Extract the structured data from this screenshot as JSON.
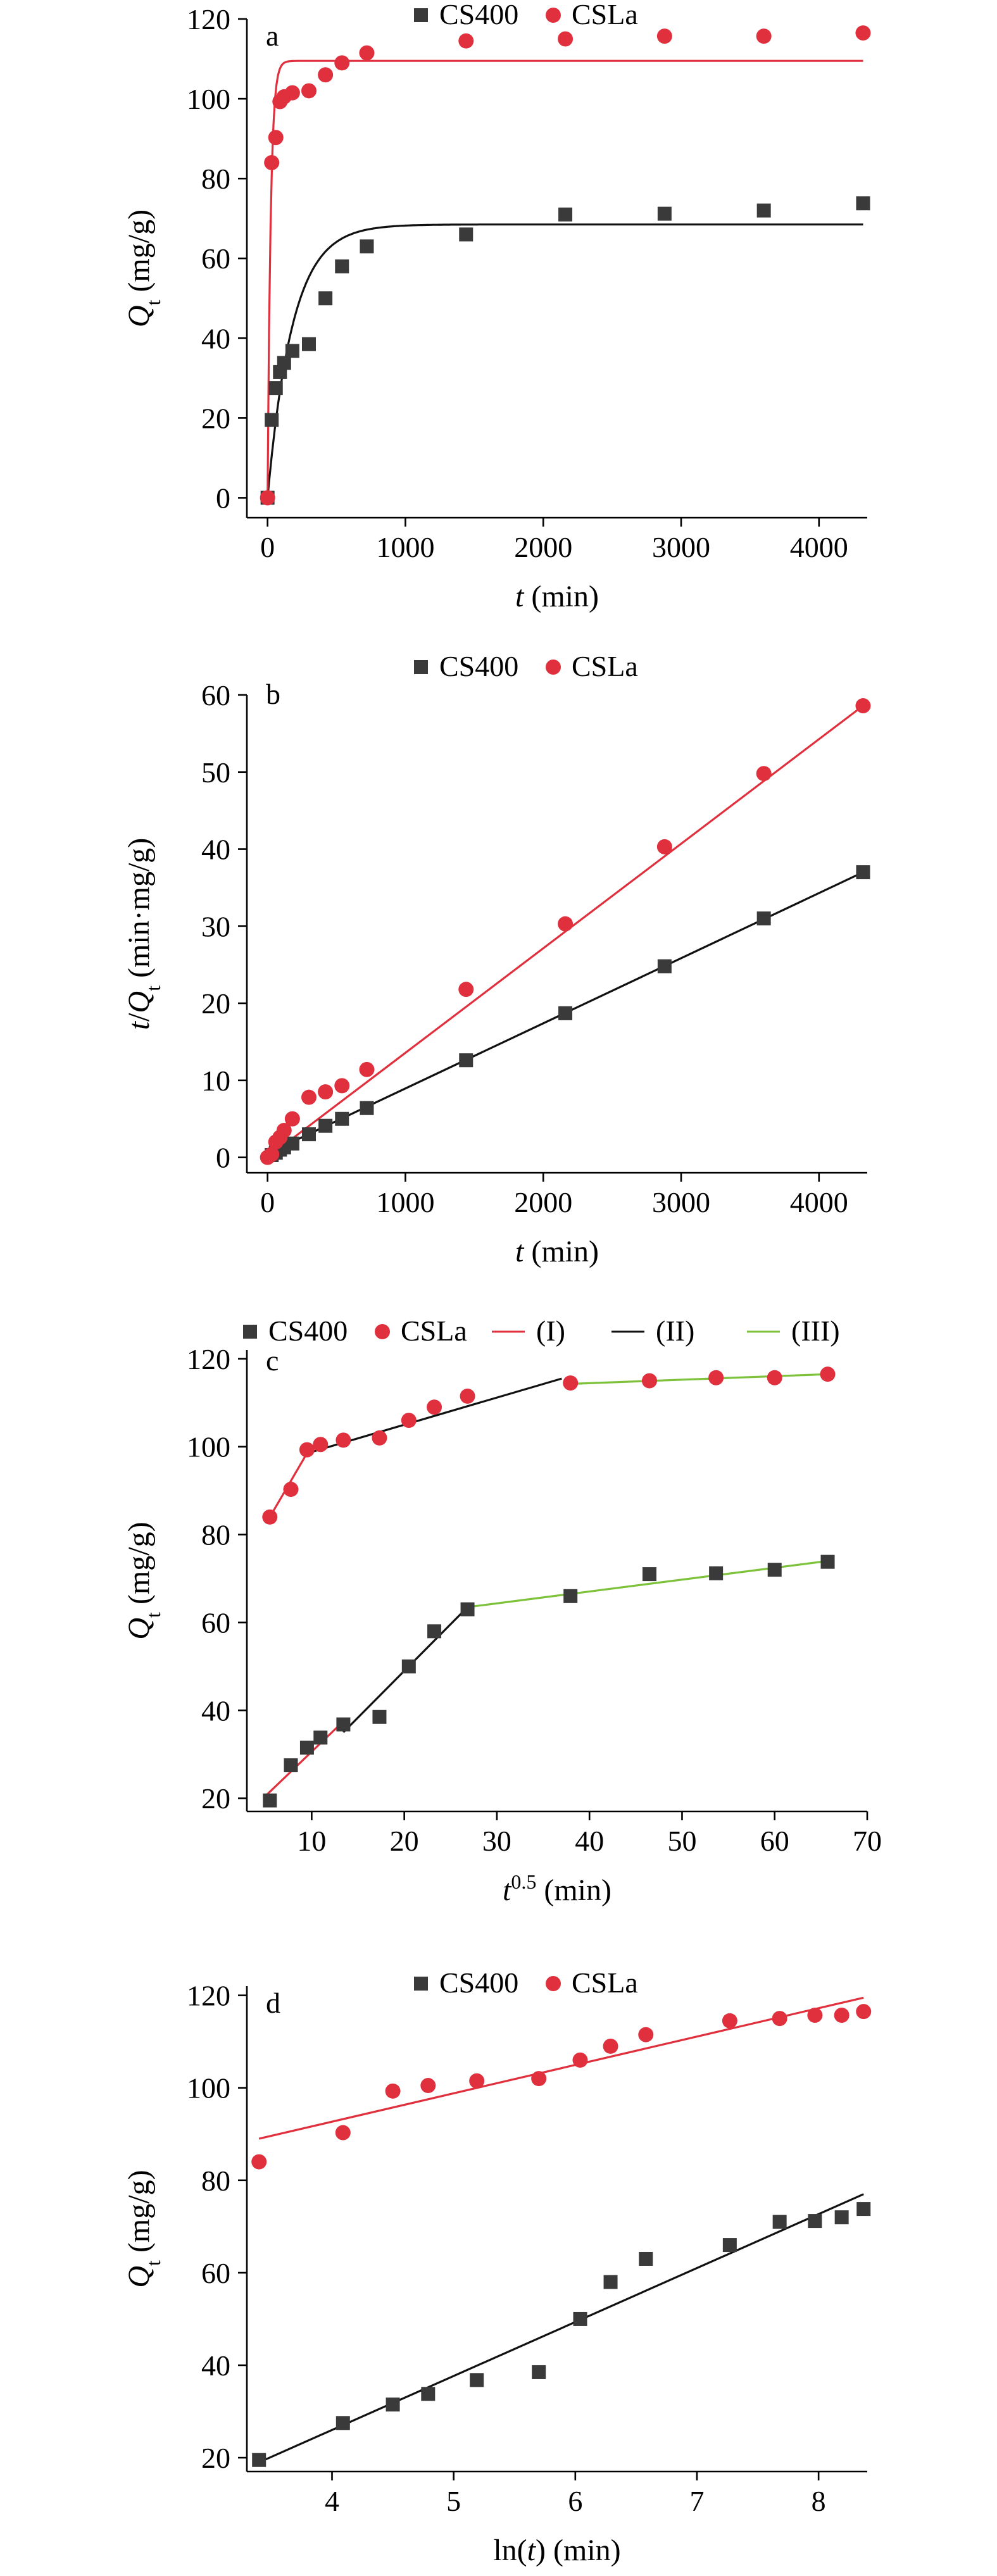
{
  "colors": {
    "cs400": "#3a3a3a",
    "csla": "#e0303e",
    "fit1": "#e0303e",
    "fit2": "#111111",
    "fit3": "#7dc23a"
  },
  "chart_data": [
    {
      "panel": "a",
      "type": "scatter",
      "xlabel": "t (min)",
      "ylabel": "Qt (mg/g)",
      "xlim": [
        -150,
        4350
      ],
      "ylim": [
        -5,
        120
      ],
      "xticks": [
        0,
        1000,
        2000,
        3000,
        4000
      ],
      "yticks": [
        0,
        20,
        40,
        60,
        80,
        100,
        120
      ],
      "legend": {
        "placement": "top",
        "items": [
          {
            "label": "CS400",
            "marker": "square",
            "color": "#3a3a3a"
          },
          {
            "label": "CSLa",
            "marker": "circle",
            "color": "#e0303e"
          }
        ]
      },
      "series": [
        {
          "name": "CS400",
          "marker": "square",
          "color": "#3a3a3a",
          "x": [
            0,
            30,
            60,
            90,
            120,
            180,
            300,
            420,
            540,
            720,
            1440,
            2160,
            2880,
            3600,
            4320
          ],
          "y": [
            0,
            19.5,
            27.5,
            31.5,
            33.8,
            36.8,
            38.5,
            50.0,
            58.0,
            63.0,
            66.0,
            71.0,
            71.2,
            72.0,
            73.8
          ]
        },
        {
          "name": "CSLa",
          "marker": "circle",
          "color": "#e0303e",
          "x": [
            0,
            30,
            60,
            90,
            120,
            180,
            300,
            420,
            540,
            720,
            1440,
            2160,
            2880,
            3600,
            4320
          ],
          "y": [
            0,
            84.0,
            90.3,
            99.3,
            100.5,
            101.5,
            102.0,
            106.0,
            109.0,
            111.5,
            114.5,
            115.0,
            115.7,
            115.7,
            116.5
          ]
        }
      ],
      "fits": [
        {
          "model": "pfo",
          "qe": 68.5,
          "k": 0.0055,
          "color": "#111111",
          "xmax": 4320
        },
        {
          "model": "pfo",
          "qe": 109.5,
          "k": 0.045,
          "color": "#e0303e",
          "xmax": 4320
        }
      ]
    },
    {
      "panel": "b",
      "type": "scatter",
      "xlabel": "t (min)",
      "ylabel": "t/Qt (min·mg/g)",
      "xlim": [
        -150,
        4350
      ],
      "ylim": [
        -2,
        60
      ],
      "xticks": [
        0,
        1000,
        2000,
        3000,
        4000
      ],
      "yticks": [
        0,
        10,
        20,
        30,
        40,
        50,
        60
      ],
      "legend": {
        "placement": "top",
        "items": [
          {
            "label": "CS400",
            "marker": "square",
            "color": "#3a3a3a"
          },
          {
            "label": "CSLa",
            "marker": "circle",
            "color": "#e0303e"
          }
        ]
      },
      "series": [
        {
          "name": "CS400",
          "marker": "square",
          "color": "#3a3a3a",
          "x": [
            30,
            60,
            90,
            120,
            180,
            300,
            420,
            540,
            720,
            1440,
            2160,
            2880,
            3600,
            4320
          ],
          "y": [
            0.3,
            0.6,
            1.0,
            1.3,
            1.8,
            3.0,
            4.1,
            5.0,
            6.4,
            12.6,
            18.7,
            24.8,
            31.0,
            37.0
          ]
        },
        {
          "name": "CSLa",
          "marker": "circle",
          "color": "#e0303e",
          "x": [
            0,
            30,
            60,
            90,
            120,
            180,
            300,
            420,
            540,
            720,
            1440,
            2160,
            2880,
            3600,
            4320
          ],
          "y": [
            0,
            0.4,
            2.0,
            2.6,
            3.5,
            5.0,
            7.8,
            8.5,
            9.3,
            11.4,
            21.8,
            30.3,
            40.3,
            49.8,
            58.6
          ]
        }
      ],
      "fits": [
        {
          "model": "line",
          "x": [
            0,
            4320
          ],
          "y": [
            0.5,
            37.0
          ],
          "color": "#111111"
        },
        {
          "model": "line",
          "x": [
            0,
            4320
          ],
          "y": [
            0.0,
            58.6
          ],
          "color": "#e0303e"
        }
      ]
    },
    {
      "panel": "c",
      "type": "scatter",
      "xlabel": "t0.5 (min)",
      "ylabel": "Qt (mg/g)",
      "xlim": [
        3,
        70
      ],
      "ylim": [
        17,
        122
      ],
      "xticks": [
        10,
        20,
        30,
        40,
        50,
        60,
        70
      ],
      "yticks": [
        20,
        40,
        60,
        80,
        100,
        120
      ],
      "legend": {
        "placement": "top",
        "items": [
          {
            "label": "CS400",
            "marker": "square",
            "color": "#3a3a3a"
          },
          {
            "label": "CSLa",
            "marker": "circle",
            "color": "#e0303e"
          },
          {
            "label": "(I)",
            "marker": "line",
            "color": "#e0303e"
          },
          {
            "label": "(II)",
            "marker": "line",
            "color": "#111111"
          },
          {
            "label": "(III)",
            "marker": "line",
            "color": "#7dc23a"
          }
        ]
      },
      "series": [
        {
          "name": "CS400",
          "marker": "square",
          "color": "#3a3a3a",
          "x": [
            5.48,
            7.75,
            9.49,
            10.95,
            13.42,
            17.32,
            20.49,
            23.24,
            26.83,
            37.95,
            46.48,
            53.67,
            60.0,
            65.73
          ],
          "y": [
            19.5,
            27.5,
            31.5,
            33.8,
            36.8,
            38.5,
            50.0,
            58.0,
            63.0,
            66.0,
            71.0,
            71.2,
            72.0,
            73.8
          ]
        },
        {
          "name": "CSLa",
          "marker": "circle",
          "color": "#e0303e",
          "x": [
            5.48,
            7.75,
            9.49,
            10.95,
            13.42,
            17.32,
            20.49,
            23.24,
            26.83,
            37.95,
            46.48,
            53.67,
            60.0,
            65.73
          ],
          "y": [
            84.0,
            90.3,
            99.3,
            100.5,
            101.5,
            102.0,
            106.0,
            109.0,
            111.5,
            114.5,
            115.0,
            115.7,
            115.7,
            116.5
          ]
        }
      ],
      "fits": [
        {
          "model": "line",
          "x": [
            5.48,
            9.49
          ],
          "y": [
            84.0,
            98.5
          ],
          "color": "#e0303e"
        },
        {
          "model": "line",
          "x": [
            9.49,
            37.0
          ],
          "y": [
            98.5,
            115.5
          ],
          "color": "#111111"
        },
        {
          "model": "line",
          "x": [
            37.95,
            65.73
          ],
          "y": [
            114.3,
            116.5
          ],
          "color": "#7dc23a"
        },
        {
          "model": "line",
          "x": [
            5.0,
            13.42
          ],
          "y": [
            20.5,
            37.5
          ],
          "color": "#e0303e"
        },
        {
          "model": "line",
          "x": [
            13.42,
            26.83
          ],
          "y": [
            35.0,
            63.5
          ],
          "color": "#111111"
        },
        {
          "model": "line",
          "x": [
            26.83,
            65.73
          ],
          "y": [
            63.5,
            74.0
          ],
          "color": "#7dc23a"
        }
      ]
    },
    {
      "panel": "d",
      "type": "scatter",
      "xlabel": "ln(t) (min)",
      "ylabel": "Qt (mg/g)",
      "xlim": [
        3.3,
        8.4
      ],
      "ylim": [
        17,
        122
      ],
      "xticks": [
        4,
        5,
        6,
        7,
        8
      ],
      "yticks": [
        20,
        40,
        60,
        80,
        100,
        120
      ],
      "legend": {
        "placement": "top",
        "items": [
          {
            "label": "CS400",
            "marker": "square",
            "color": "#3a3a3a"
          },
          {
            "label": "CSLa",
            "marker": "circle",
            "color": "#e0303e"
          }
        ]
      },
      "series": [
        {
          "name": "CS400",
          "marker": "square",
          "color": "#3a3a3a",
          "x": [
            3.4,
            4.09,
            4.5,
            4.79,
            5.19,
            5.7,
            6.04,
            6.29,
            6.58,
            7.27,
            7.68,
            7.97,
            8.19,
            8.37
          ],
          "y": [
            19.5,
            27.5,
            31.5,
            33.8,
            36.8,
            38.5,
            50.0,
            58.0,
            63.0,
            66.0,
            71.0,
            71.2,
            72.0,
            73.8
          ]
        },
        {
          "name": "CSLa",
          "marker": "circle",
          "color": "#e0303e",
          "x": [
            3.4,
            4.09,
            4.5,
            4.79,
            5.19,
            5.7,
            6.04,
            6.29,
            6.58,
            7.27,
            7.68,
            7.97,
            8.19,
            8.37
          ],
          "y": [
            84.0,
            90.3,
            99.3,
            100.5,
            101.5,
            102.0,
            106.0,
            109.0,
            111.5,
            114.5,
            115.0,
            115.7,
            115.7,
            116.5
          ]
        }
      ],
      "fits": [
        {
          "model": "line",
          "x": [
            3.4,
            8.37
          ],
          "y": [
            19.0,
            77.0
          ],
          "color": "#111111"
        },
        {
          "model": "line",
          "x": [
            3.4,
            8.37
          ],
          "y": [
            89.0,
            119.5
          ],
          "color": "#e0303e"
        }
      ]
    }
  ]
}
